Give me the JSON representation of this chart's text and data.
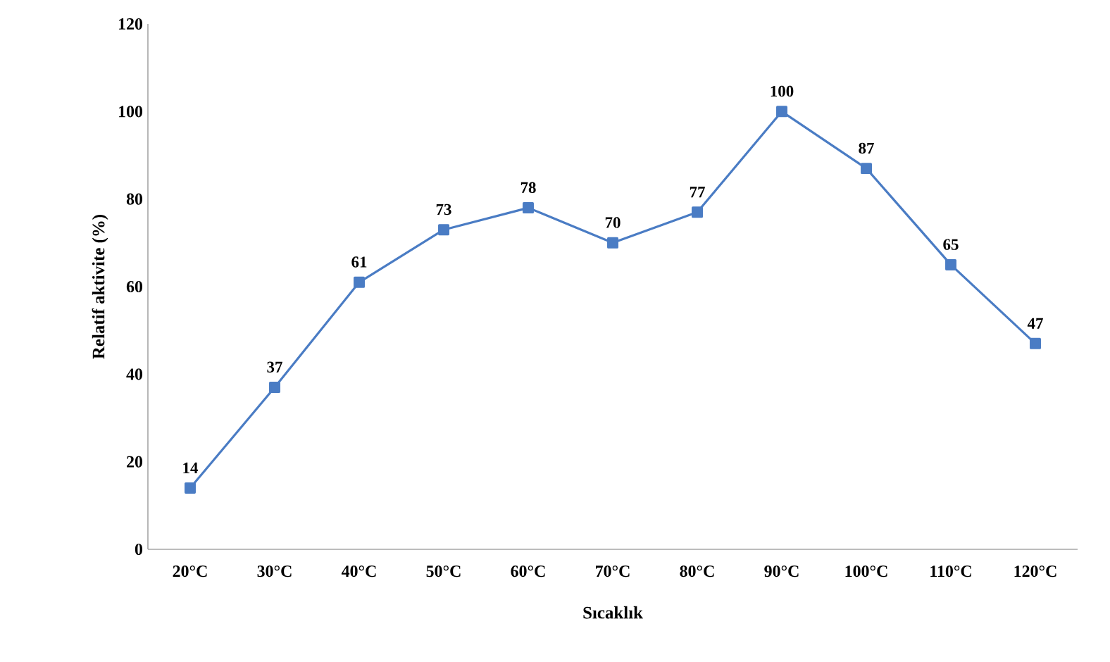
{
  "chart_data": {
    "type": "line",
    "xlabel": "Sıcaklık",
    "ylabel": "Relatif aktivite (%)",
    "categories": [
      "20°C",
      "30°C",
      "40°C",
      "50°C",
      "60°C",
      "70°C",
      "80°C",
      "90°C",
      "100°C",
      "110°C",
      "120°C"
    ],
    "values": [
      14,
      37,
      61,
      73,
      78,
      70,
      77,
      100,
      87,
      65,
      47
    ],
    "color": "#4a7cc4",
    "marker": "square",
    "line_style": "solid",
    "data_labels": true,
    "ylim": [
      0,
      120
    ],
    "yticks": [
      0,
      20,
      40,
      60,
      80,
      100,
      120
    ],
    "grid": false
  }
}
